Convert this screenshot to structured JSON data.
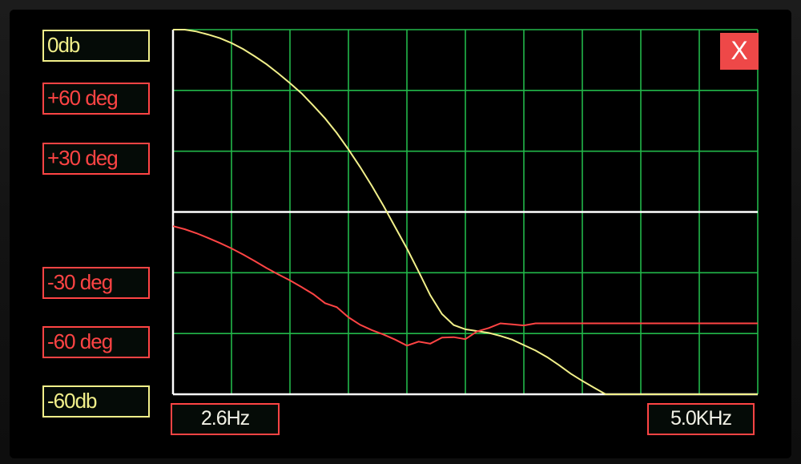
{
  "colors": {
    "magnitude": "#f2f08a",
    "phase": "#ff4444",
    "grid": "#22b84a",
    "zero_line": "#ffffff",
    "axis": "#ffffff",
    "close_bg": "#ee4848"
  },
  "labels": {
    "mag_top": "0db",
    "phase_p60": "+60  deg",
    "phase_p30": "+30  deg",
    "phase_m30": "-30  deg",
    "phase_m60": "-60  deg",
    "mag_bottom": "-60db"
  },
  "x_axis": {
    "start_label": "2.6Hz",
    "end_label": "5.0KHz"
  },
  "close_button": {
    "label": "X"
  },
  "chart_data": {
    "type": "line",
    "title": "",
    "grid": true,
    "grid_cols": 10,
    "grid_rows": 6,
    "x": [
      0,
      2,
      4,
      6,
      8,
      10,
      12,
      14,
      16,
      18,
      20,
      22,
      24,
      26,
      28,
      30,
      32,
      34,
      36,
      38,
      40,
      42,
      44,
      46,
      48,
      50,
      52,
      54,
      56,
      58,
      60,
      62,
      64,
      66,
      68,
      70,
      72,
      74,
      76,
      78,
      80,
      82,
      84,
      86,
      88,
      89,
      90,
      91,
      92,
      93,
      94,
      96,
      98,
      100
    ],
    "xlim": [
      0,
      100
    ],
    "xlabel_units": "% of sweep (2.6Hz to 5.0KHz)",
    "series": [
      {
        "name": "magnitude",
        "unit": "db",
        "ylim": [
          -60,
          0
        ],
        "values": [
          0,
          0,
          -0.3,
          -0.8,
          -1.4,
          -2.2,
          -3.2,
          -4.4,
          -5.7,
          -7.2,
          -8.8,
          -10.5,
          -12.5,
          -14.6,
          -17,
          -19.7,
          -22.6,
          -25.7,
          -29,
          -32.5,
          -36,
          -39.8,
          -43.7,
          -46.8,
          -48.6,
          -49.3,
          -49.6,
          -49.9,
          -50.4,
          -51,
          -51.9,
          -52.8,
          -53.9,
          -55.2,
          -56.6,
          -57.8,
          -58.9,
          -60,
          -60,
          -60,
          -60,
          -60,
          -60,
          -60,
          -60,
          -60,
          -60,
          -60,
          -60,
          -60,
          -60,
          -60,
          -60,
          -60
        ]
      },
      {
        "name": "phase",
        "unit": "deg",
        "ylim": [
          -90,
          90
        ],
        "values": [
          -7,
          -8.5,
          -10.5,
          -12.8,
          -15.3,
          -18,
          -21,
          -24.3,
          -27.7,
          -30.8,
          -33.8,
          -37.1,
          -40.6,
          -45,
          -47,
          -52,
          -55.7,
          -58.3,
          -60.5,
          -63,
          -66,
          -64,
          -65,
          -62,
          -61.8,
          -62.8,
          -59,
          -57.3,
          -55,
          -55.5,
          -56,
          -55,
          -55,
          -55,
          -55,
          -55,
          -55,
          -55,
          -55,
          -55,
          -55,
          -55,
          -55,
          -55,
          -55,
          -55,
          -55,
          -55,
          -55,
          -55,
          -55,
          -55,
          -55,
          -55
        ]
      }
    ]
  }
}
